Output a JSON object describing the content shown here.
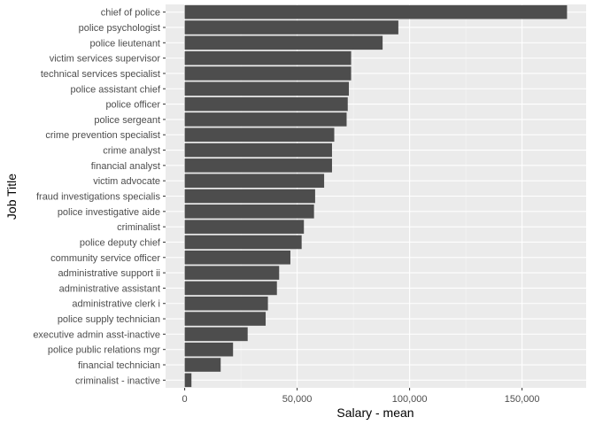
{
  "chart_data": {
    "type": "bar",
    "orientation": "horizontal",
    "xlabel": "Salary - mean",
    "ylabel": "Job Title",
    "xlim": [
      -8500,
      178500
    ],
    "x_ticks": [
      0,
      50000,
      100000,
      150000
    ],
    "x_tick_labels": [
      "0",
      "50,000",
      "100,000",
      "150,000"
    ],
    "grid": true,
    "categories": [
      "chief of police",
      "police psychologist",
      "police lieutenant",
      "victim services supervisor",
      "technical services specialist",
      "police assistant chief",
      "police officer",
      "police sergeant",
      "crime prevention specialist",
      "crime analyst",
      "financial analyst",
      "victim advocate",
      "fraud investigations specialis",
      "police investigative aide",
      "criminalist",
      "police deputy chief",
      "community service officer",
      "administrative support ii",
      "administrative assistant",
      "administrative clerk i",
      "police supply technician",
      "executive admin asst-inactive",
      "police public relations mgr",
      "financial technician",
      "criminalist - inactive"
    ],
    "values": [
      170000,
      95000,
      88000,
      74000,
      74000,
      73000,
      72500,
      72000,
      66500,
      65500,
      65500,
      62000,
      58000,
      57500,
      53000,
      52000,
      47000,
      42000,
      41000,
      37000,
      36000,
      28000,
      21500,
      16000,
      3000
    ],
    "colors": {
      "bar": "#4d4d4d",
      "panel": "#ebebeb",
      "grid_major": "#ffffff",
      "grid_minor": "#f5f5f5"
    }
  }
}
